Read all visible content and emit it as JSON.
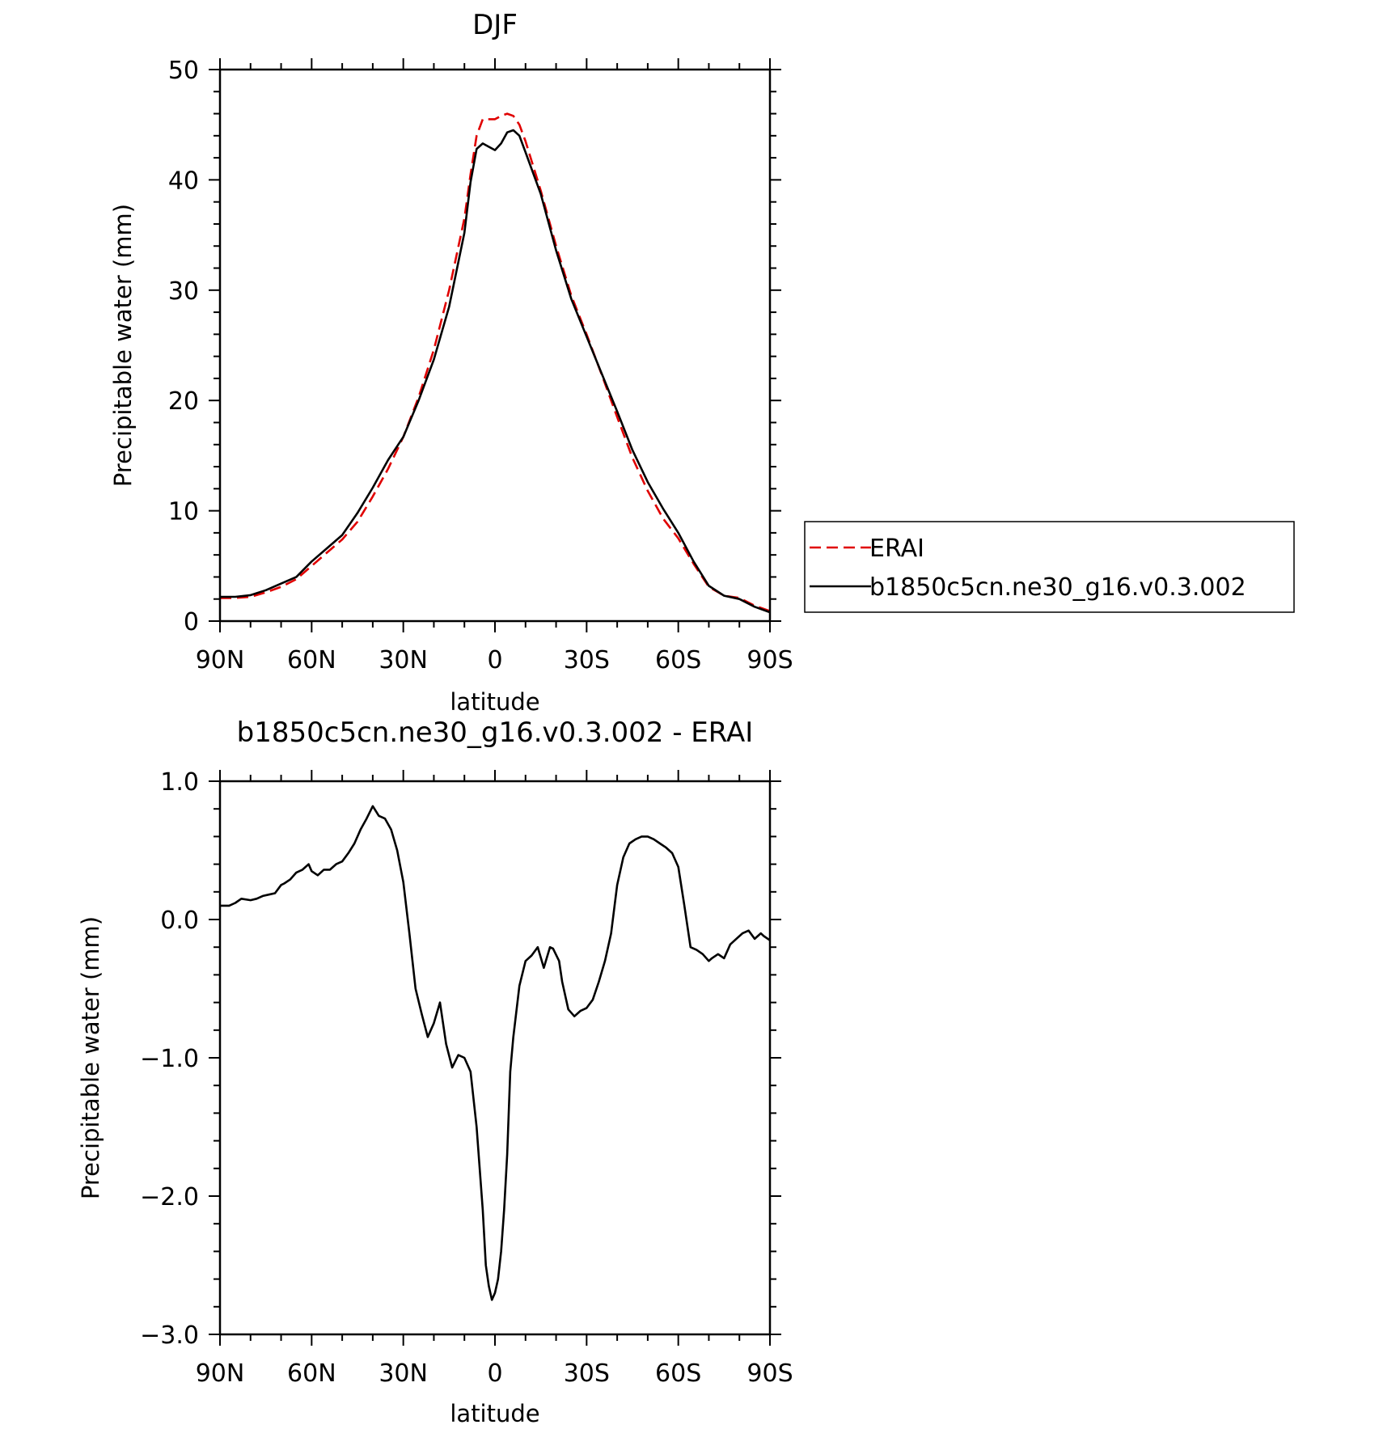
{
  "chart_data": [
    {
      "type": "line",
      "title": "DJF",
      "xlabel": "latitude",
      "ylabel": "Precipitable water (mm)",
      "xlim": [
        90,
        -90
      ],
      "ylim": [
        0,
        50
      ],
      "x_ticks": [
        90,
        60,
        30,
        0,
        -30,
        -60,
        -90
      ],
      "x_tick_labels": [
        "90N",
        "60N",
        "30N",
        "0",
        "30S",
        "60S",
        "90S"
      ],
      "y_ticks": [
        0,
        10,
        20,
        30,
        40,
        50
      ],
      "y_tick_labels": [
        "0",
        "10",
        "20",
        "30",
        "40",
        "50"
      ],
      "legend": {
        "position": "right",
        "entries": [
          "ERAI",
          "b1850c5cn.ne30_g16.v0.3.002"
        ]
      },
      "series": [
        {
          "name": "ERAI",
          "color": "#e00000",
          "style": "dashed",
          "x": [
            90,
            85,
            80,
            75,
            70,
            65,
            60,
            55,
            50,
            45,
            40,
            35,
            30,
            25,
            20,
            15,
            10,
            8,
            6,
            4,
            2,
            0,
            -2,
            -4,
            -6,
            -8,
            -10,
            -15,
            -20,
            -25,
            -30,
            -35,
            -40,
            -45,
            -50,
            -55,
            -60,
            -65,
            -70,
            -75,
            -80,
            -85,
            -90
          ],
          "y": [
            2.1,
            2.1,
            2.2,
            2.6,
            3.1,
            3.8,
            5.0,
            6.2,
            7.4,
            9.0,
            11.3,
            13.8,
            16.7,
            20.3,
            24.6,
            30.0,
            36.5,
            40.5,
            44.0,
            45.5,
            45.5,
            45.5,
            45.8,
            46.0,
            45.8,
            45.0,
            43.5,
            39.0,
            34.0,
            29.5,
            26.0,
            22.3,
            18.5,
            14.8,
            11.8,
            9.3,
            7.5,
            5.2,
            3.1,
            2.3,
            2.1,
            1.4,
            0.9
          ]
        },
        {
          "name": "b1850c5cn.ne30_g16.v0.3.002",
          "color": "#000000",
          "style": "solid",
          "x": [
            90,
            85,
            80,
            75,
            70,
            65,
            60,
            55,
            50,
            45,
            40,
            35,
            30,
            25,
            20,
            15,
            10,
            8,
            6,
            4,
            2,
            0,
            -2,
            -4,
            -6,
            -8,
            -10,
            -15,
            -20,
            -25,
            -30,
            -35,
            -40,
            -45,
            -50,
            -55,
            -60,
            -65,
            -70,
            -75,
            -80,
            -85,
            -90
          ],
          "y": [
            2.2,
            2.2,
            2.35,
            2.8,
            3.4,
            4.0,
            5.4,
            6.6,
            7.8,
            9.8,
            12.1,
            14.6,
            16.7,
            20.0,
            23.7,
            28.5,
            35.2,
            39.8,
            42.8,
            43.3,
            43.0,
            42.7,
            43.3,
            44.3,
            44.5,
            44.0,
            42.5,
            38.7,
            33.6,
            29.2,
            25.8,
            22.4,
            19.0,
            15.5,
            12.6,
            10.2,
            8.0,
            5.4,
            3.2,
            2.3,
            2.0,
            1.3,
            0.8
          ]
        }
      ]
    },
    {
      "type": "line",
      "title": "b1850c5cn.ne30_g16.v0.3.002 - ERAI",
      "xlabel": "latitude",
      "ylabel": "Precipitable water (mm)",
      "xlim": [
        90,
        -90
      ],
      "ylim": [
        -3.0,
        1.0
      ],
      "x_ticks": [
        90,
        60,
        30,
        0,
        -30,
        -60,
        -90
      ],
      "x_tick_labels": [
        "90N",
        "60N",
        "30N",
        "0",
        "30S",
        "60S",
        "90S"
      ],
      "y_ticks": [
        1.0,
        0.0,
        -1.0,
        -2.0,
        -3.0
      ],
      "y_tick_labels": [
        "1.0",
        "0.0",
        "−1.0",
        "−2.0",
        "−3.0"
      ],
      "series": [
        {
          "color": "#000000",
          "style": "solid",
          "x": [
            90,
            87,
            85,
            83,
            80,
            78,
            76,
            74,
            72,
            70,
            69,
            67,
            65,
            63,
            61,
            60,
            58,
            56,
            54,
            52,
            50,
            48,
            46,
            44,
            42,
            40,
            38,
            36,
            34,
            32,
            30,
            28,
            26,
            24,
            22,
            20,
            18,
            16,
            14,
            12,
            10,
            8,
            6,
            4,
            3,
            2,
            1,
            0,
            -1,
            -2,
            -3,
            -4,
            -5,
            -6,
            -8,
            -10,
            -12,
            -14,
            -16,
            -18,
            -19,
            -21,
            -22,
            -24,
            -26,
            -28,
            -30,
            -32,
            -34,
            -36,
            -38,
            -40,
            -42,
            -44,
            -46,
            -48,
            -50,
            -52,
            -54,
            -56,
            -58,
            -60,
            -62,
            -64,
            -66,
            -68,
            -70,
            -71,
            -73,
            -75,
            -77,
            -79,
            -81,
            -83,
            -85,
            -87,
            -88,
            -90
          ],
          "y": [
            0.1,
            0.1,
            0.12,
            0.15,
            0.14,
            0.15,
            0.17,
            0.18,
            0.19,
            0.25,
            0.26,
            0.29,
            0.34,
            0.36,
            0.4,
            0.35,
            0.32,
            0.36,
            0.36,
            0.4,
            0.42,
            0.48,
            0.55,
            0.65,
            0.73,
            0.82,
            0.75,
            0.73,
            0.65,
            0.5,
            0.27,
            -0.1,
            -0.5,
            -0.68,
            -0.85,
            -0.75,
            -0.6,
            -0.9,
            -1.07,
            -0.98,
            -1.0,
            -1.1,
            -1.5,
            -2.1,
            -2.5,
            -2.65,
            -2.75,
            -2.7,
            -2.6,
            -2.4,
            -2.1,
            -1.7,
            -1.1,
            -0.85,
            -0.48,
            -0.3,
            -0.26,
            -0.2,
            -0.35,
            -0.2,
            -0.21,
            -0.3,
            -0.45,
            -0.65,
            -0.7,
            -0.66,
            -0.64,
            -0.58,
            -0.45,
            -0.3,
            -0.1,
            0.25,
            0.45,
            0.55,
            0.58,
            0.6,
            0.6,
            0.58,
            0.55,
            0.52,
            0.48,
            0.38,
            0.1,
            -0.2,
            -0.22,
            -0.25,
            -0.3,
            -0.28,
            -0.25,
            -0.28,
            -0.18,
            -0.14,
            -0.1,
            -0.08,
            -0.14,
            -0.1,
            -0.12,
            -0.15
          ]
        }
      ]
    }
  ]
}
